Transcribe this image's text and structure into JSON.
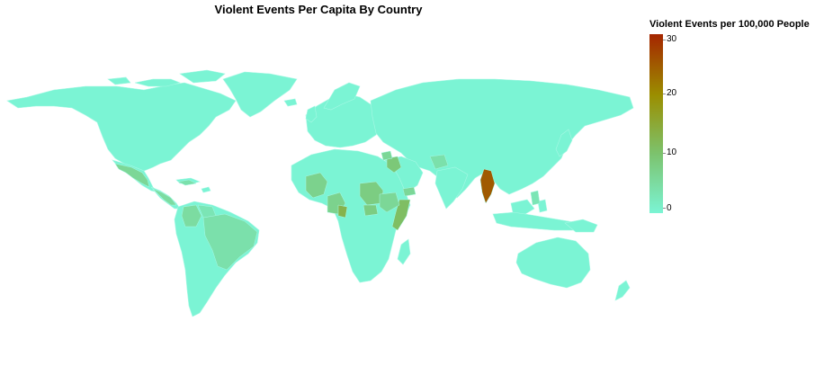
{
  "title": "Violent Events Per Capita By Country",
  "legend": {
    "title": "Violent Events per 100,000 People",
    "ticks": [
      "30",
      "20",
      "10",
      "0"
    ],
    "colors": {
      "low": "#7bf4d4",
      "mid": "#7cc36e",
      "high": "#9b8e00",
      "top": "#a52500"
    }
  },
  "colors": {
    "land_base": "#7bf4d4",
    "border": "#9cf7e0",
    "background": "#ffffff"
  },
  "regions": [
    {
      "name": "Mexico",
      "value": 6
    },
    {
      "name": "Central America",
      "value": 5
    },
    {
      "name": "Cuba",
      "value": 4
    },
    {
      "name": "Colombia",
      "value": 5
    },
    {
      "name": "Venezuela",
      "value": 3
    },
    {
      "name": "Brazil",
      "value": 4
    },
    {
      "name": "Mali",
      "value": 7
    },
    {
      "name": "Sudan",
      "value": 8
    },
    {
      "name": "Iraq",
      "value": 9
    },
    {
      "name": "Syria",
      "value": 6
    },
    {
      "name": "Yemen",
      "value": 6
    },
    {
      "name": "Somalia",
      "value": 11
    },
    {
      "name": "Nigeria",
      "value": 7
    },
    {
      "name": "Cameroon",
      "value": 13
    },
    {
      "name": "South Sudan",
      "value": 8
    },
    {
      "name": "Ethiopia",
      "value": 6
    },
    {
      "name": "Afghanistan",
      "value": 4
    },
    {
      "name": "Myanmar",
      "value": 25
    },
    {
      "name": "Philippines",
      "value": 3
    }
  ]
}
